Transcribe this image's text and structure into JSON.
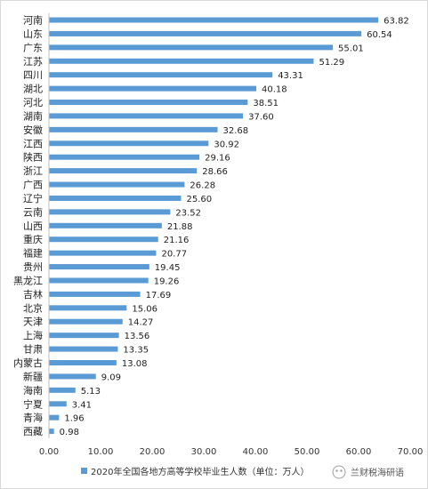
{
  "chart_data": {
    "type": "bar",
    "orientation": "horizontal",
    "categories": [
      "河南",
      "山东",
      "广东",
      "江苏",
      "四川",
      "湖北",
      "河北",
      "湖南",
      "安徽",
      "江西",
      "陕西",
      "浙江",
      "广西",
      "辽宁",
      "云南",
      "山西",
      "重庆",
      "福建",
      "贵州",
      "黑龙江",
      "吉林",
      "北京",
      "天津",
      "上海",
      "甘肃",
      "内蒙古",
      "新疆",
      "海南",
      "宁夏",
      "青海",
      "西藏"
    ],
    "series": [
      {
        "name": "2020年全国各地方高等学校毕业生人数（单位：万人）",
        "color": "#5b9bd5",
        "values": [
          63.82,
          60.54,
          55.01,
          51.29,
          43.31,
          40.18,
          38.51,
          37.6,
          32.68,
          30.92,
          29.16,
          28.66,
          26.28,
          25.6,
          23.52,
          21.88,
          21.16,
          20.77,
          19.45,
          19.26,
          17.69,
          15.06,
          14.27,
          13.56,
          13.35,
          13.08,
          9.09,
          5.13,
          3.41,
          1.96,
          0.98
        ]
      }
    ],
    "value_labels": [
      "63.82",
      "60.54",
      "55.01",
      "51.29",
      "43.31",
      "40.18",
      "38.51",
      "37.60",
      "32.68",
      "30.92",
      "29.16",
      "28.66",
      "26.28",
      "25.60",
      "23.52",
      "21.88",
      "21.16",
      "20.77",
      "19.45",
      "19.26",
      "17.69",
      "15.06",
      "14.27",
      "13.56",
      "13.35",
      "13.08",
      "9.09",
      "5.13",
      "3.41",
      "1.96",
      "0.98"
    ],
    "x_ticks": [
      "0.00",
      "10.00",
      "20.00",
      "30.00",
      "40.00",
      "50.00",
      "60.00",
      "70.00"
    ],
    "xlim": [
      0,
      70
    ],
    "grid": false,
    "legend_position": "bottom",
    "legend_label": "2020年全国各地方高等学校毕业生人数（单位：万人）"
  },
  "watermark": {
    "text": "兰财税海研语"
  }
}
